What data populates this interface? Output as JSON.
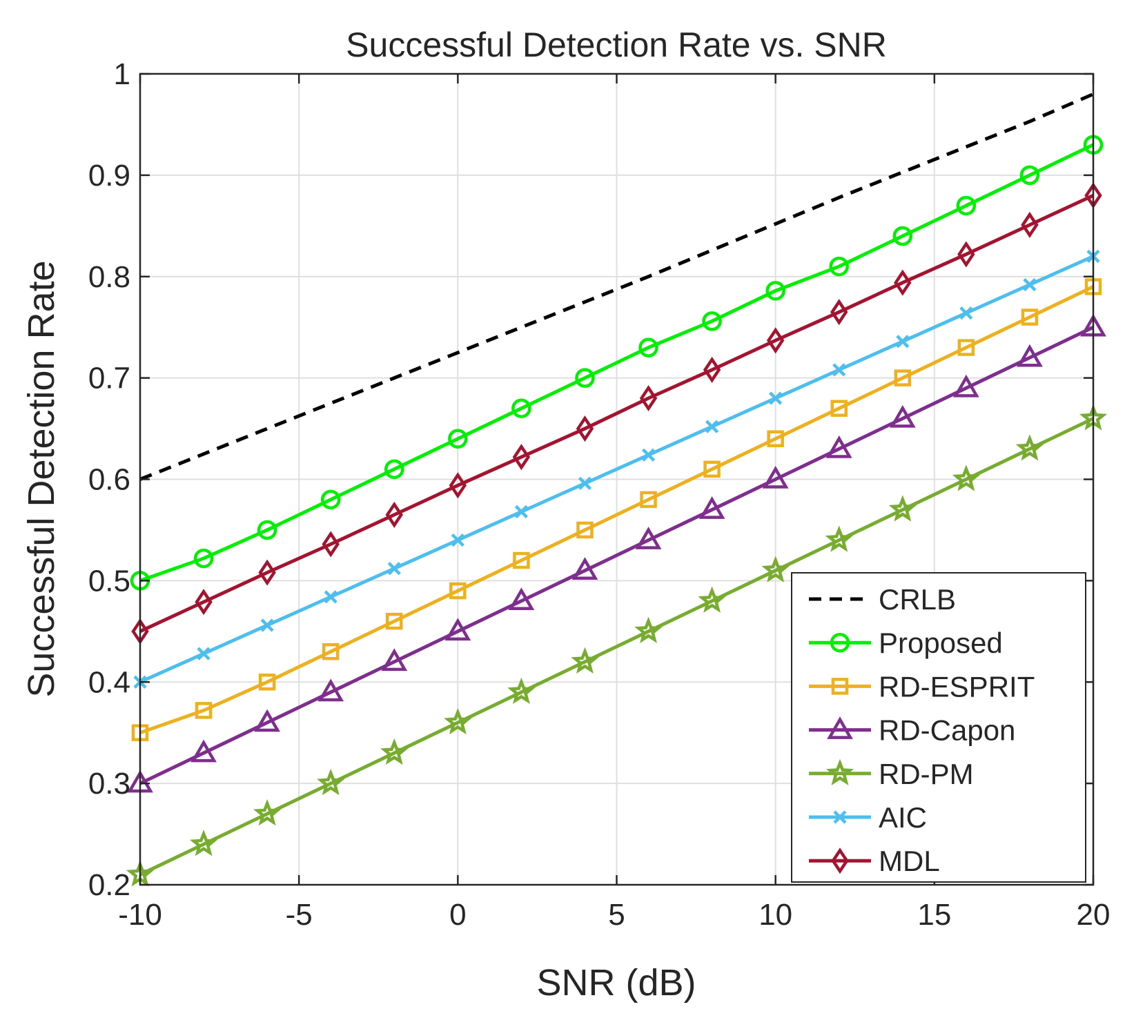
{
  "chart_data": {
    "type": "line",
    "title": "Successful Detection Rate vs. SNR",
    "xlabel": "SNR (dB)",
    "ylabel": "Successful Detection Rate",
    "xlim": [
      -10,
      20
    ],
    "ylim": [
      0.2,
      1
    ],
    "xticks": [
      -10,
      -5,
      0,
      5,
      10,
      15,
      20
    ],
    "yticks": [
      0.2,
      0.3,
      0.4,
      0.5,
      0.6,
      0.7,
      0.8,
      0.9,
      1
    ],
    "xtick_labels": [
      "-10",
      "-5",
      "0",
      "5",
      "10",
      "15",
      "20"
    ],
    "ytick_labels": [
      "0.2",
      "0.3",
      "0.4",
      "0.5",
      "0.6",
      "0.7",
      "0.8",
      "0.9",
      "1"
    ],
    "grid": true,
    "legend_position": "bottom-right",
    "x": [
      -10,
      -8,
      -6,
      -4,
      -2,
      0,
      2,
      4,
      6,
      8,
      10,
      12,
      14,
      16,
      18,
      20
    ],
    "series": [
      {
        "name": "CRLB",
        "color": "#000000",
        "style": "dashed",
        "marker": "none",
        "values": [
          0.6,
          0.625,
          0.65,
          0.675,
          0.7,
          0.725,
          0.75,
          0.775,
          0.8,
          0.826,
          0.852,
          0.878,
          0.903,
          0.928,
          0.953,
          0.98
        ]
      },
      {
        "name": "Proposed",
        "color": "#00ee00",
        "style": "solid",
        "marker": "circle",
        "values": [
          0.5,
          0.522,
          0.55,
          0.58,
          0.61,
          0.64,
          0.67,
          0.7,
          0.73,
          0.756,
          0.786,
          0.81,
          0.84,
          0.87,
          0.9,
          0.93
        ]
      },
      {
        "name": "RD-ESPRIT",
        "color": "#edb120",
        "style": "solid",
        "marker": "square",
        "values": [
          0.35,
          0.372,
          0.4,
          0.43,
          0.46,
          0.49,
          0.52,
          0.55,
          0.58,
          0.61,
          0.64,
          0.67,
          0.7,
          0.73,
          0.76,
          0.79
        ]
      },
      {
        "name": "RD-Capon",
        "color": "#7e2f8e",
        "style": "solid",
        "marker": "triangle",
        "values": [
          0.3,
          0.33,
          0.36,
          0.39,
          0.42,
          0.45,
          0.48,
          0.51,
          0.54,
          0.57,
          0.6,
          0.63,
          0.66,
          0.69,
          0.72,
          0.75
        ]
      },
      {
        "name": "RD-PM",
        "color": "#77ac30",
        "style": "solid",
        "marker": "star",
        "values": [
          0.21,
          0.24,
          0.27,
          0.3,
          0.33,
          0.36,
          0.39,
          0.42,
          0.45,
          0.48,
          0.51,
          0.54,
          0.57,
          0.6,
          0.63,
          0.66
        ]
      },
      {
        "name": "AIC",
        "color": "#4dbeee",
        "style": "solid",
        "marker": "x",
        "values": [
          0.4,
          0.428,
          0.456,
          0.484,
          0.512,
          0.54,
          0.568,
          0.596,
          0.624,
          0.652,
          0.68,
          0.708,
          0.736,
          0.764,
          0.792,
          0.82
        ]
      },
      {
        "name": "MDL",
        "color": "#a2142f",
        "style": "solid",
        "marker": "diamond",
        "values": [
          0.45,
          0.479,
          0.508,
          0.536,
          0.565,
          0.594,
          0.622,
          0.65,
          0.68,
          0.708,
          0.737,
          0.765,
          0.794,
          0.822,
          0.851,
          0.88
        ]
      }
    ],
    "legend_order": [
      "CRLB",
      "Proposed",
      "RD-ESPRIT",
      "RD-Capon",
      "RD-PM",
      "AIC",
      "MDL"
    ]
  }
}
